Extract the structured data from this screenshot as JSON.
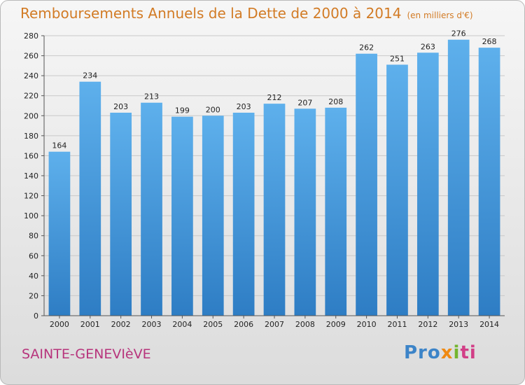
{
  "title": "Remboursements Annuels de la Dette de 2000 à 2014",
  "unit_note": "(en milliers d'€)",
  "place": "SAINTE-GENEVIèVE",
  "brand": {
    "parts": [
      "Pro",
      "x",
      "i",
      "ti"
    ]
  },
  "colors": {
    "bar_light": "#5eb0ec",
    "bar_dark": "#2e7dc4",
    "title": "#d27b25",
    "place": "#b7347c",
    "grid": "#c9c9c9"
  },
  "chart_data": {
    "type": "bar",
    "categories": [
      "2000",
      "2001",
      "2002",
      "2003",
      "2004",
      "2005",
      "2006",
      "2007",
      "2008",
      "2009",
      "2010",
      "2011",
      "2012",
      "2013",
      "2014"
    ],
    "values": [
      164,
      234,
      203,
      213,
      199,
      200,
      203,
      212,
      207,
      208,
      262,
      251,
      263,
      276,
      268
    ],
    "ylim": [
      0,
      280
    ],
    "yticks": [
      0,
      20,
      40,
      60,
      80,
      100,
      120,
      140,
      160,
      180,
      200,
      220,
      240,
      260,
      280
    ],
    "grid": true,
    "data_labels": true
  }
}
